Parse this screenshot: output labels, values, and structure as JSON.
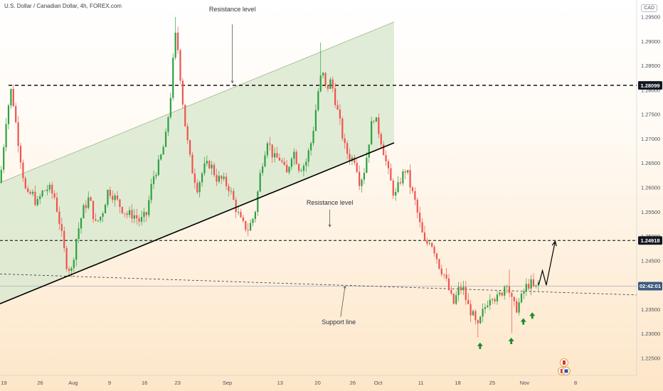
{
  "header": {
    "title": "U.S. Dollar / Canadian Dollar, 4h, FOREX.com",
    "currency": "CAD"
  },
  "colors": {
    "up": "#26a69a",
    "up_body": "#2ea043",
    "down": "#ef5350",
    "channel_fill": "#dbe9d0",
    "support": "#000000",
    "arrow_green": "#1b8a2a",
    "price_tag": "#3d5a80",
    "tag_black": "#131722"
  },
  "chart_data": {
    "type": "candlestick",
    "ylim": [
      1.2215,
      1.2985
    ],
    "yticks": [
      "1.29500",
      "1.29000",
      "1.28500",
      "1.28000",
      "1.27500",
      "1.27000",
      "1.26500",
      "1.26000",
      "1.25500",
      "1.25000",
      "1.24500",
      "1.24000",
      "1.23500",
      "1.23000",
      "1.22500"
    ],
    "xlim": [
      0,
      100
    ],
    "xticks": [
      {
        "x": 0.6,
        "label": "19"
      },
      {
        "x": 6.3,
        "label": "26"
      },
      {
        "x": 11.5,
        "label": "Aug"
      },
      {
        "x": 17.2,
        "label": "9"
      },
      {
        "x": 22.7,
        "label": "16"
      },
      {
        "x": 27.9,
        "label": "23"
      },
      {
        "x": 35.7,
        "label": "Sep"
      },
      {
        "x": 44.0,
        "label": "13"
      },
      {
        "x": 49.9,
        "label": "20"
      },
      {
        "x": 55.4,
        "label": "26"
      },
      {
        "x": 59.4,
        "label": "Oct"
      },
      {
        "x": 66.1,
        "label": "11"
      },
      {
        "x": 71.9,
        "label": "18"
      },
      {
        "x": 77.3,
        "label": "25"
      },
      {
        "x": 82.4,
        "label": "Nov"
      },
      {
        "x": 90.4,
        "label": "8"
      }
    ],
    "price_path": [
      [
        0,
        1.261
      ],
      [
        1,
        1.2745
      ],
      [
        1.8,
        1.2805
      ],
      [
        2.6,
        1.272
      ],
      [
        3.4,
        1.2645
      ],
      [
        4.2,
        1.2578
      ],
      [
        5.0,
        1.259
      ],
      [
        5.8,
        1.2565
      ],
      [
        6.6,
        1.259
      ],
      [
        7.6,
        1.26
      ],
      [
        8.6,
        1.258
      ],
      [
        9.4,
        1.2525
      ],
      [
        10.4,
        1.2445
      ],
      [
        11.2,
        1.2428
      ],
      [
        12.0,
        1.2498
      ],
      [
        13.0,
        1.2552
      ],
      [
        14.0,
        1.258
      ],
      [
        15.0,
        1.2525
      ],
      [
        16.0,
        1.2545
      ],
      [
        17.0,
        1.2597
      ],
      [
        18.0,
        1.258
      ],
      [
        19.0,
        1.256
      ],
      [
        20.0,
        1.2545
      ],
      [
        21.0,
        1.2545
      ],
      [
        22.0,
        1.253
      ],
      [
        23.0,
        1.2545
      ],
      [
        24.0,
        1.262
      ],
      [
        25.0,
        1.265
      ],
      [
        26.0,
        1.27
      ],
      [
        26.8,
        1.279
      ],
      [
        27.5,
        1.2915
      ],
      [
        28.0,
        1.288
      ],
      [
        28.5,
        1.28
      ],
      [
        29.2,
        1.2715
      ],
      [
        30.0,
        1.2645
      ],
      [
        31.0,
        1.26
      ],
      [
        32.0,
        1.264
      ],
      [
        33.0,
        1.265
      ],
      [
        34.0,
        1.262
      ],
      [
        35.0,
        1.2615
      ],
      [
        36.0,
        1.26
      ],
      [
        37.0,
        1.256
      ],
      [
        38.0,
        1.2525
      ],
      [
        39.0,
        1.2515
      ],
      [
        40.0,
        1.2545
      ],
      [
        41.0,
        1.264
      ],
      [
        42.0,
        1.27
      ],
      [
        43.0,
        1.266
      ],
      [
        44.0,
        1.266
      ],
      [
        45.0,
        1.2625
      ],
      [
        46.0,
        1.268
      ],
      [
        47.0,
        1.264
      ],
      [
        48.0,
        1.265
      ],
      [
        49.0,
        1.27
      ],
      [
        50.0,
        1.28
      ],
      [
        50.6,
        1.284
      ],
      [
        51.2,
        1.28
      ],
      [
        52.0,
        1.282
      ],
      [
        52.8,
        1.277
      ],
      [
        53.5,
        1.2725
      ],
      [
        54.2,
        1.268
      ],
      [
        55.0,
        1.266
      ],
      [
        55.8,
        1.266
      ],
      [
        56.5,
        1.261
      ],
      [
        57.3,
        1.264
      ],
      [
        58.0,
        1.27
      ],
      [
        58.6,
        1.275
      ],
      [
        59.2,
        1.273
      ],
      [
        60.0,
        1.269
      ],
      [
        61.0,
        1.263
      ],
      [
        62.0,
        1.258
      ],
      [
        63.0,
        1.262
      ],
      [
        63.8,
        1.264
      ],
      [
        64.5,
        1.26
      ],
      [
        65.2,
        1.257
      ],
      [
        66.0,
        1.252
      ],
      [
        66.8,
        1.248
      ],
      [
        67.5,
        1.2495
      ],
      [
        68.3,
        1.247
      ],
      [
        69.0,
        1.244
      ],
      [
        69.8,
        1.242
      ],
      [
        70.5,
        1.239
      ],
      [
        71.2,
        1.236
      ],
      [
        72.0,
        1.239
      ],
      [
        72.7,
        1.2395
      ],
      [
        73.4,
        1.236
      ],
      [
        74.2,
        1.234
      ],
      [
        75.0,
        1.231
      ],
      [
        75.7,
        1.234
      ],
      [
        76.5,
        1.2365
      ],
      [
        77.2,
        1.2385
      ],
      [
        78.0,
        1.237
      ],
      [
        78.8,
        1.2385
      ],
      [
        79.6,
        1.241
      ],
      [
        80.3,
        1.237
      ],
      [
        81.0,
        1.235
      ],
      [
        81.8,
        1.237
      ],
      [
        82.5,
        1.2395
      ],
      [
        83.3,
        1.2405
      ],
      [
        84.0,
        1.239
      ],
      [
        84.6,
        1.2405
      ]
    ],
    "peaks": [
      {
        "x": 27.4,
        "high": 1.295
      },
      {
        "x": 50.5,
        "high": 1.2898
      },
      {
        "x": 80.0,
        "high": 1.2432
      }
    ],
    "troughs": [
      {
        "x": 75.0,
        "low": 1.2293
      },
      {
        "x": 80.2,
        "low": 1.2302
      }
    ],
    "channel": {
      "lower": [
        [
          0,
          1.2362
        ],
        [
          61.9,
          1.2692
        ]
      ],
      "upper": [
        [
          0,
          1.261
        ],
        [
          61.9,
          1.294
        ]
      ]
    },
    "resistance_1": 1.28099,
    "resistance_2": 1.24918,
    "support_line": [
      [
        0,
        1.2423
      ],
      [
        100,
        1.238
      ]
    ],
    "current_price_line": 1.2398,
    "projection": [
      [
        84.6,
        1.24
      ],
      [
        85.2,
        1.243
      ],
      [
        85.8,
        1.24
      ],
      [
        87.2,
        1.249
      ]
    ],
    "green_arrows": [
      {
        "x": 75.4,
        "y": 1.2275
      },
      {
        "x": 80.3,
        "y": 1.2285
      },
      {
        "x": 82.2,
        "y": 1.2325
      },
      {
        "x": 83.6,
        "y": 1.2337
      }
    ],
    "annotations": [
      {
        "text": "Resistance level",
        "x": 36.5,
        "y": 1.2962
      },
      {
        "text": "Resistance level",
        "x": 51.8,
        "y": 1.2565
      },
      {
        "text": "Support line",
        "x": 53.2,
        "y": 1.232
      }
    ],
    "price_tags": [
      {
        "label": "1.28099",
        "price": 1.28099,
        "style": "black"
      },
      {
        "label": "1.24918",
        "price": 1.24918,
        "style": "black"
      },
      {
        "label": "02:42:01",
        "price": 1.2398,
        "style": "blue"
      }
    ]
  }
}
